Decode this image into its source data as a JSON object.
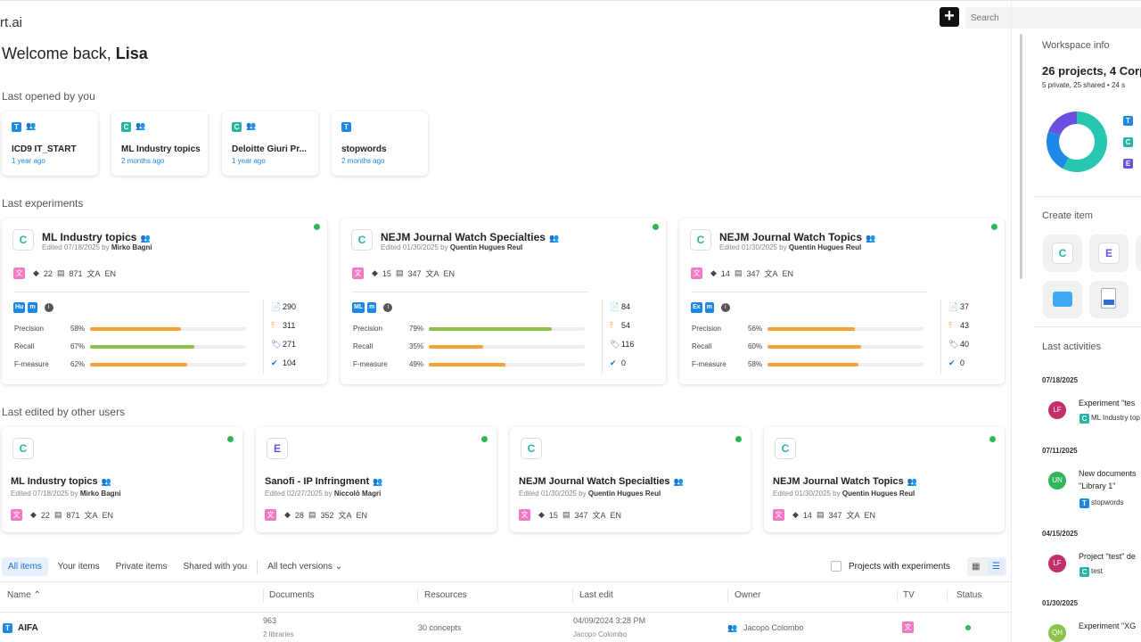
{
  "app": {
    "logo": "rt.ai",
    "search_placeholder": "Search",
    "plus": "+"
  },
  "welcome": {
    "prefix": "Welcome back,",
    "name": "Lisa"
  },
  "sections": {
    "last_opened": "Last opened by you",
    "last_experiments": "Last experiments",
    "last_edited": "Last edited by other users"
  },
  "recent": [
    {
      "badge": "T",
      "name": "ICD9 IT_START",
      "time": "1 year ago",
      "shared": true
    },
    {
      "badge": "C",
      "name": "ML Industry topics",
      "time": "2 months ago",
      "shared": true
    },
    {
      "badge": "C",
      "name": "Deloitte Giuri Pr...",
      "time": "1 year ago",
      "shared": true
    },
    {
      "badge": "T",
      "name": "stopwords",
      "time": "2 months ago",
      "shared": false
    }
  ],
  "experiments": [
    {
      "badge": "C",
      "title": "ML Industry topics",
      "edited": "Edited 07/18/2025 by",
      "user": "Mirko Bagni",
      "res": "22",
      "docs": "871",
      "lang": "EN",
      "models": [
        "Hu",
        "m"
      ],
      "metrics": [
        {
          "label": "Precision",
          "val": "58%",
          "p": 58,
          "color": "#f7a234"
        },
        {
          "label": "Recall",
          "val": "67%",
          "p": 67,
          "color": "#8bc34a"
        },
        {
          "label": "F-measure",
          "val": "62%",
          "p": 62,
          "color": "#f7a234"
        }
      ],
      "stats": [
        "290",
        "311",
        "271",
        "104"
      ]
    },
    {
      "badge": "C",
      "title": "NEJM Journal Watch Specialties",
      "edited": "Edited 01/30/2025 by",
      "user": "Quentin Hugues Reul",
      "res": "15",
      "docs": "347",
      "lang": "EN",
      "models": [
        "ML",
        "m"
      ],
      "metrics": [
        {
          "label": "Precision",
          "val": "79%",
          "p": 79,
          "color": "#8bc34a"
        },
        {
          "label": "Recall",
          "val": "35%",
          "p": 35,
          "color": "#f7a234"
        },
        {
          "label": "F-measure",
          "val": "49%",
          "p": 49,
          "color": "#f7a234"
        }
      ],
      "stats": [
        "84",
        "54",
        "116",
        "0"
      ]
    },
    {
      "badge": "C",
      "title": "NEJM Journal Watch Topics",
      "edited": "Edited 01/30/2025 by",
      "user": "Quentin Hugues Reul",
      "res": "14",
      "docs": "347",
      "lang": "EN",
      "models": [
        "Ex",
        "m"
      ],
      "metrics": [
        {
          "label": "Precision",
          "val": "56%",
          "p": 56,
          "color": "#f7a234"
        },
        {
          "label": "Recall",
          "val": "60%",
          "p": 60,
          "color": "#f7a234"
        },
        {
          "label": "F-measure",
          "val": "58%",
          "p": 58,
          "color": "#f7a234"
        }
      ],
      "stats": [
        "37",
        "43",
        "40",
        "0"
      ]
    }
  ],
  "edited": [
    {
      "badge": "C",
      "title": "ML Industry topics",
      "edited": "Edited 07/18/2025 by",
      "user": "Mirko Bagni",
      "res": "22",
      "docs": "871",
      "lang": "EN"
    },
    {
      "badge": "E",
      "title": "Sanofi - IP Infringment",
      "edited": "Edited 02/27/2025 by",
      "user": "Niccolò Magri",
      "res": "28",
      "docs": "352",
      "lang": "EN"
    },
    {
      "badge": "C",
      "title": "NEJM Journal Watch Specialties",
      "edited": "Edited 01/30/2025 by",
      "user": "Quentin Hugues Reul",
      "res": "15",
      "docs": "347",
      "lang": "EN"
    },
    {
      "badge": "C",
      "title": "NEJM Journal Watch Topics",
      "edited": "Edited 01/30/2025 by",
      "user": "Quentin Hugues Reul",
      "res": "14",
      "docs": "347",
      "lang": "EN"
    }
  ],
  "tabs": [
    "All items",
    "Your items",
    "Private items",
    "Shared with you",
    "All tech versions"
  ],
  "filter_label": "Projects with experiments",
  "table": {
    "headers": [
      "Name",
      "Documents",
      "Resources",
      "Last edit",
      "Owner",
      "TV",
      "Status"
    ],
    "rows": [
      {
        "badge": "T",
        "name": "AIFA",
        "docs": "963",
        "docs_sub": "2 libraries",
        "resources": "30 concepts",
        "last_edit": "04/09/2024 3:28 PM",
        "last_edit_sub": "Jacopo Colombo",
        "owner": "Jacopo Colombo"
      }
    ]
  },
  "workspace": {
    "title": "Workspace info",
    "summary": "26 projects, 4 Corp",
    "sub": "5 private, 25 shared • 24 s",
    "donut": [
      {
        "label": "C",
        "value": 15,
        "color": "#26c6b0"
      },
      {
        "label": "T",
        "value": 6,
        "color": "#1e88e5"
      },
      {
        "label": "E",
        "value": 5,
        "color": "#6a4fe0"
      }
    ]
  },
  "create": {
    "title": "Create item",
    "items": [
      "C",
      "E"
    ]
  },
  "activities": {
    "title": "Last activities",
    "items": [
      {
        "date": "07/18/2025",
        "initials": "LF",
        "color": "#c2306a",
        "text": "Experiment \"tes",
        "sub_badge": "C",
        "sub": "ML Industry top"
      },
      {
        "date": "07/11/2025",
        "initials": "UN",
        "color": "#2fb55a",
        "text": "New documents",
        "text2": "\"Library 1\"",
        "sub_badge": "T",
        "sub": "stopwords"
      },
      {
        "date": "04/15/2025",
        "initials": "LF",
        "color": "#c2306a",
        "text": "Project \"test\" de",
        "sub_badge": "C",
        "sub": "test"
      },
      {
        "date": "01/30/2025",
        "initials": "QH",
        "color": "#8bc34a",
        "text": "Experiment \"XG"
      }
    ]
  }
}
